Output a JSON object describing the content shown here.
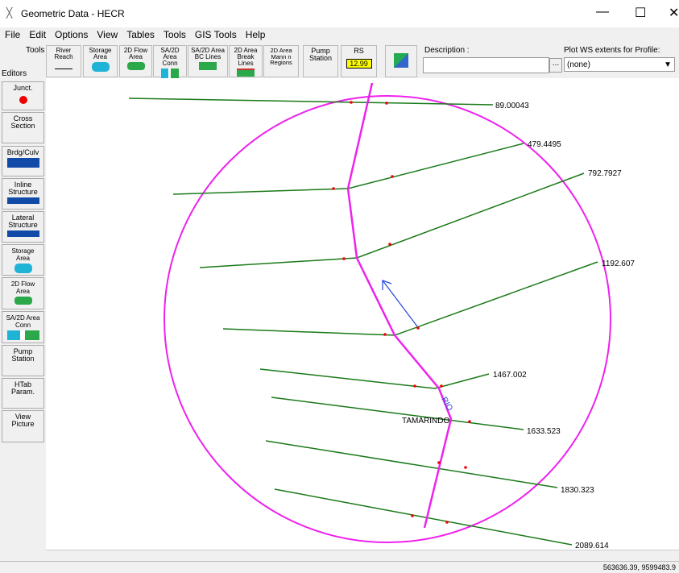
{
  "window": {
    "title": "Geometric Data - HECR"
  },
  "menu": [
    "File",
    "Edit",
    "Options",
    "View",
    "Tables",
    "Tools",
    "GIS Tools",
    "Help"
  ],
  "toolbar": {
    "tools_label": "Tools",
    "editors_label": "Editors",
    "buttons": [
      "River\nReach",
      "Storage\nArea",
      "2D Flow\nArea",
      "SA/2D Area\nConn",
      "SA/2D Area\nBC Lines",
      "2D Area\nBreak Lines",
      "2D Area\nMann n\nRegions",
      "Pump\nStation"
    ],
    "rs_label": "RS",
    "rs_value": "12.99",
    "description_label": "Description :",
    "browse": "...",
    "profile_label": "Plot WS extents for Profile:",
    "profile_value": "(none)"
  },
  "editors": [
    "Junct.",
    "Cross\nSection",
    "Brdg/Culv",
    "Inline\nStructure",
    "Lateral\nStructure",
    "Storage\nArea",
    "2D Flow\nArea",
    "SA/2D Area\nConn",
    "Pump\nStation",
    "HTab\nParam.",
    "View\nPicture"
  ],
  "map": {
    "cross_sections": [
      "89.00043",
      "479.4495",
      "792.7927",
      "1192.607",
      "1467.002",
      "1633.523",
      "1830.323",
      "2089.614"
    ],
    "river": "RIO",
    "reach": "TAMARINDO"
  },
  "status": {
    "coordinates": "563636.39, 9599483.9"
  }
}
